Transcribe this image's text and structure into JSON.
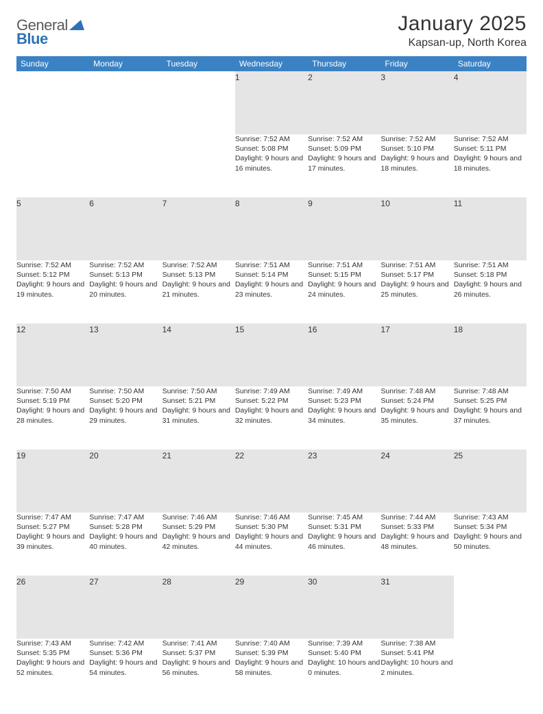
{
  "brand": {
    "general": "General",
    "blue": "Blue"
  },
  "title": "January 2025",
  "location": "Kapsan-up, North Korea",
  "colors": {
    "header_bg": "#3b82c4",
    "header_text": "#ffffff",
    "daynum_bg": "#e5e5e5",
    "border": "#b9b9b9",
    "text": "#333333",
    "brand_gray": "#5a5a5a",
    "brand_blue": "#2d72b8"
  },
  "weekdays": [
    "Sunday",
    "Monday",
    "Tuesday",
    "Wednesday",
    "Thursday",
    "Friday",
    "Saturday"
  ],
  "weeks": [
    [
      null,
      null,
      null,
      {
        "d": "1",
        "sr": "7:52 AM",
        "ss": "5:08 PM",
        "dl": "9 hours and 16 minutes."
      },
      {
        "d": "2",
        "sr": "7:52 AM",
        "ss": "5:09 PM",
        "dl": "9 hours and 17 minutes."
      },
      {
        "d": "3",
        "sr": "7:52 AM",
        "ss": "5:10 PM",
        "dl": "9 hours and 18 minutes."
      },
      {
        "d": "4",
        "sr": "7:52 AM",
        "ss": "5:11 PM",
        "dl": "9 hours and 18 minutes."
      }
    ],
    [
      {
        "d": "5",
        "sr": "7:52 AM",
        "ss": "5:12 PM",
        "dl": "9 hours and 19 minutes."
      },
      {
        "d": "6",
        "sr": "7:52 AM",
        "ss": "5:13 PM",
        "dl": "9 hours and 20 minutes."
      },
      {
        "d": "7",
        "sr": "7:52 AM",
        "ss": "5:13 PM",
        "dl": "9 hours and 21 minutes."
      },
      {
        "d": "8",
        "sr": "7:51 AM",
        "ss": "5:14 PM",
        "dl": "9 hours and 23 minutes."
      },
      {
        "d": "9",
        "sr": "7:51 AM",
        "ss": "5:15 PM",
        "dl": "9 hours and 24 minutes."
      },
      {
        "d": "10",
        "sr": "7:51 AM",
        "ss": "5:17 PM",
        "dl": "9 hours and 25 minutes."
      },
      {
        "d": "11",
        "sr": "7:51 AM",
        "ss": "5:18 PM",
        "dl": "9 hours and 26 minutes."
      }
    ],
    [
      {
        "d": "12",
        "sr": "7:50 AM",
        "ss": "5:19 PM",
        "dl": "9 hours and 28 minutes."
      },
      {
        "d": "13",
        "sr": "7:50 AM",
        "ss": "5:20 PM",
        "dl": "9 hours and 29 minutes."
      },
      {
        "d": "14",
        "sr": "7:50 AM",
        "ss": "5:21 PM",
        "dl": "9 hours and 31 minutes."
      },
      {
        "d": "15",
        "sr": "7:49 AM",
        "ss": "5:22 PM",
        "dl": "9 hours and 32 minutes."
      },
      {
        "d": "16",
        "sr": "7:49 AM",
        "ss": "5:23 PM",
        "dl": "9 hours and 34 minutes."
      },
      {
        "d": "17",
        "sr": "7:48 AM",
        "ss": "5:24 PM",
        "dl": "9 hours and 35 minutes."
      },
      {
        "d": "18",
        "sr": "7:48 AM",
        "ss": "5:25 PM",
        "dl": "9 hours and 37 minutes."
      }
    ],
    [
      {
        "d": "19",
        "sr": "7:47 AM",
        "ss": "5:27 PM",
        "dl": "9 hours and 39 minutes."
      },
      {
        "d": "20",
        "sr": "7:47 AM",
        "ss": "5:28 PM",
        "dl": "9 hours and 40 minutes."
      },
      {
        "d": "21",
        "sr": "7:46 AM",
        "ss": "5:29 PM",
        "dl": "9 hours and 42 minutes."
      },
      {
        "d": "22",
        "sr": "7:46 AM",
        "ss": "5:30 PM",
        "dl": "9 hours and 44 minutes."
      },
      {
        "d": "23",
        "sr": "7:45 AM",
        "ss": "5:31 PM",
        "dl": "9 hours and 46 minutes."
      },
      {
        "d": "24",
        "sr": "7:44 AM",
        "ss": "5:33 PM",
        "dl": "9 hours and 48 minutes."
      },
      {
        "d": "25",
        "sr": "7:43 AM",
        "ss": "5:34 PM",
        "dl": "9 hours and 50 minutes."
      }
    ],
    [
      {
        "d": "26",
        "sr": "7:43 AM",
        "ss": "5:35 PM",
        "dl": "9 hours and 52 minutes."
      },
      {
        "d": "27",
        "sr": "7:42 AM",
        "ss": "5:36 PM",
        "dl": "9 hours and 54 minutes."
      },
      {
        "d": "28",
        "sr": "7:41 AM",
        "ss": "5:37 PM",
        "dl": "9 hours and 56 minutes."
      },
      {
        "d": "29",
        "sr": "7:40 AM",
        "ss": "5:39 PM",
        "dl": "9 hours and 58 minutes."
      },
      {
        "d": "30",
        "sr": "7:39 AM",
        "ss": "5:40 PM",
        "dl": "10 hours and 0 minutes."
      },
      {
        "d": "31",
        "sr": "7:38 AM",
        "ss": "5:41 PM",
        "dl": "10 hours and 2 minutes."
      },
      null
    ]
  ],
  "labels": {
    "sunrise": "Sunrise:",
    "sunset": "Sunset:",
    "daylight": "Daylight:"
  }
}
